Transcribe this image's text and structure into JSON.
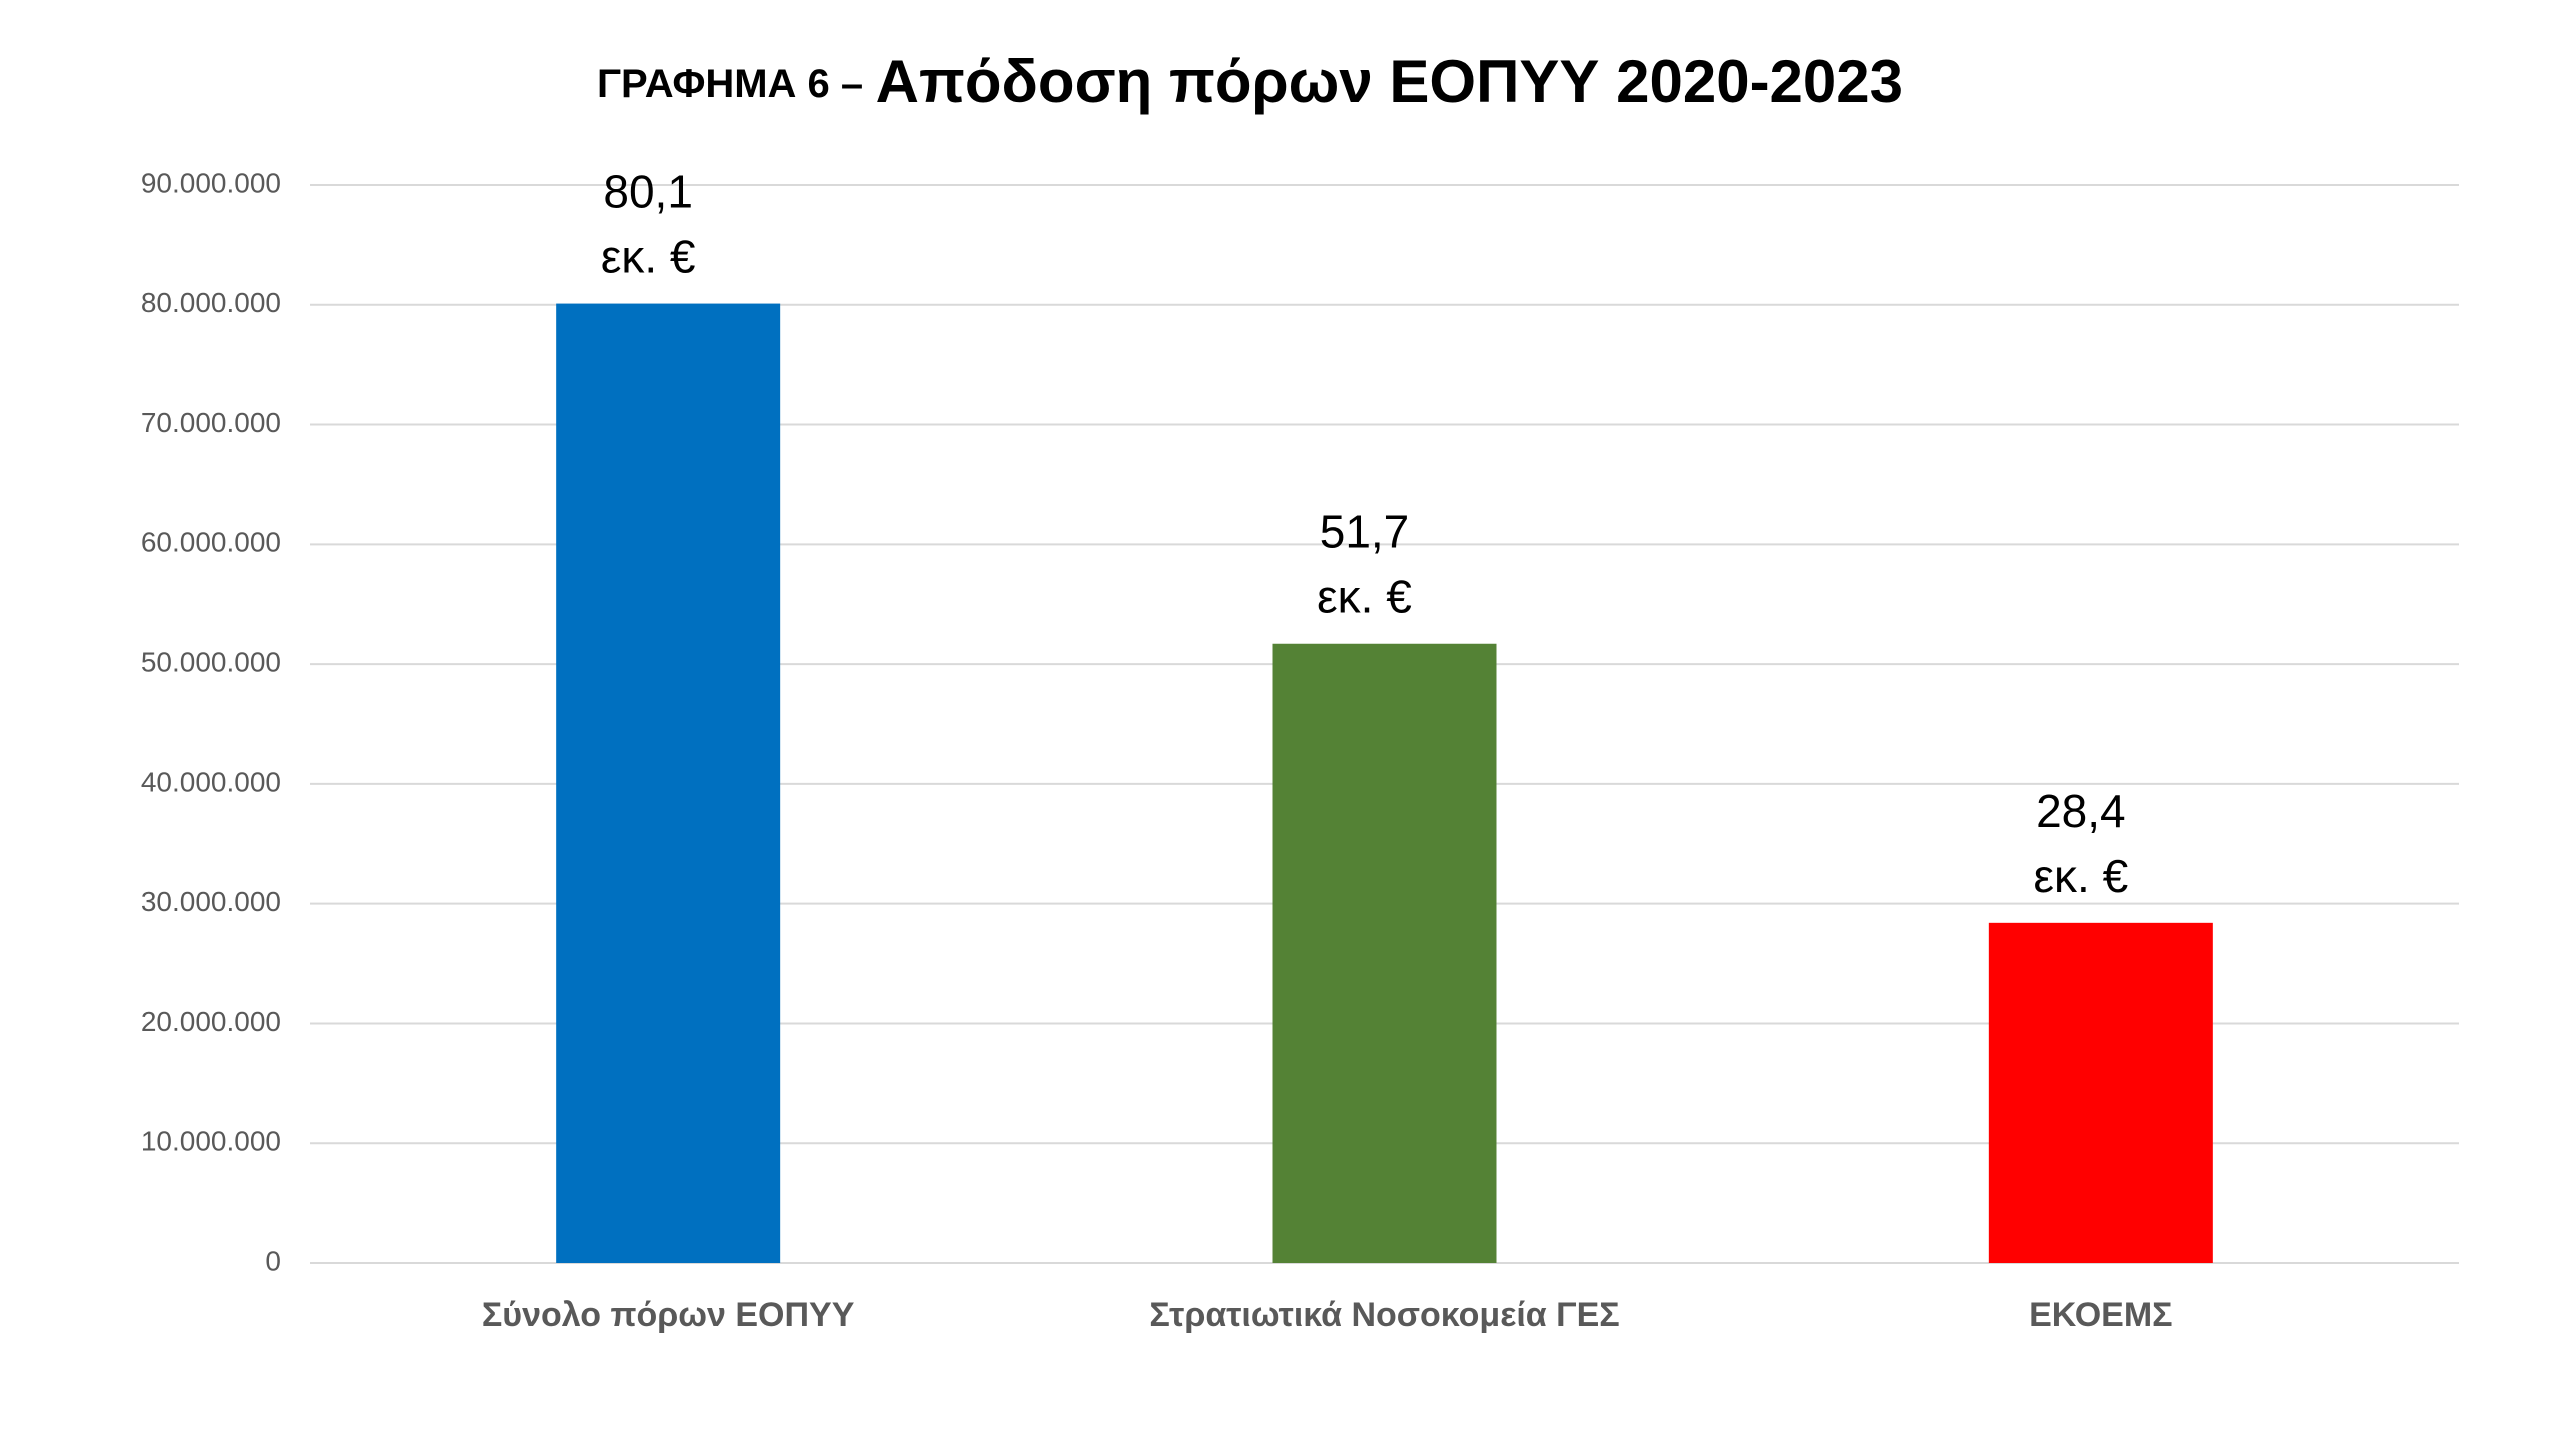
{
  "chart_data": {
    "type": "bar",
    "title_prefix": "ΓΡΑΦΗΜΑ 6 –",
    "title": "Απόδοση πόρων ΕΟΠΥΥ 2020-2023",
    "categories": [
      "Σύνολο πόρων ΕΟΠΥΥ",
      "Στρατιωτικά Νοσοκομεία ΓΕΣ",
      "ΕΚΟΕΜΣ"
    ],
    "values": [
      80100000,
      51700000,
      28400000
    ],
    "value_labels": [
      "80,1 εκ. €",
      "51,7 εκ. €",
      "28,4 εκ. €"
    ],
    "colors": [
      "#0070c0",
      "#548235",
      "#ff0000"
    ],
    "ylim": [
      0,
      90000000
    ],
    "yticks": [
      0,
      {
        "value": 10000000,
        "label": "10.000.000"
      },
      {
        "value": 20000000,
        "label": "20.000.000"
      },
      {
        "value": 30000000,
        "label": "30.000.000"
      },
      {
        "value": 40000000,
        "label": "40.000.000"
      },
      {
        "value": 50000000,
        "label": "50.000.000"
      },
      {
        "value": 60000000,
        "label": "60.000.000"
      },
      {
        "value": 70000000,
        "label": "70.000.000"
      },
      {
        "value": 80000000,
        "label": "80.000.000"
      },
      {
        "value": 90000000,
        "label": "90.000.000"
      }
    ],
    "grid": true
  }
}
